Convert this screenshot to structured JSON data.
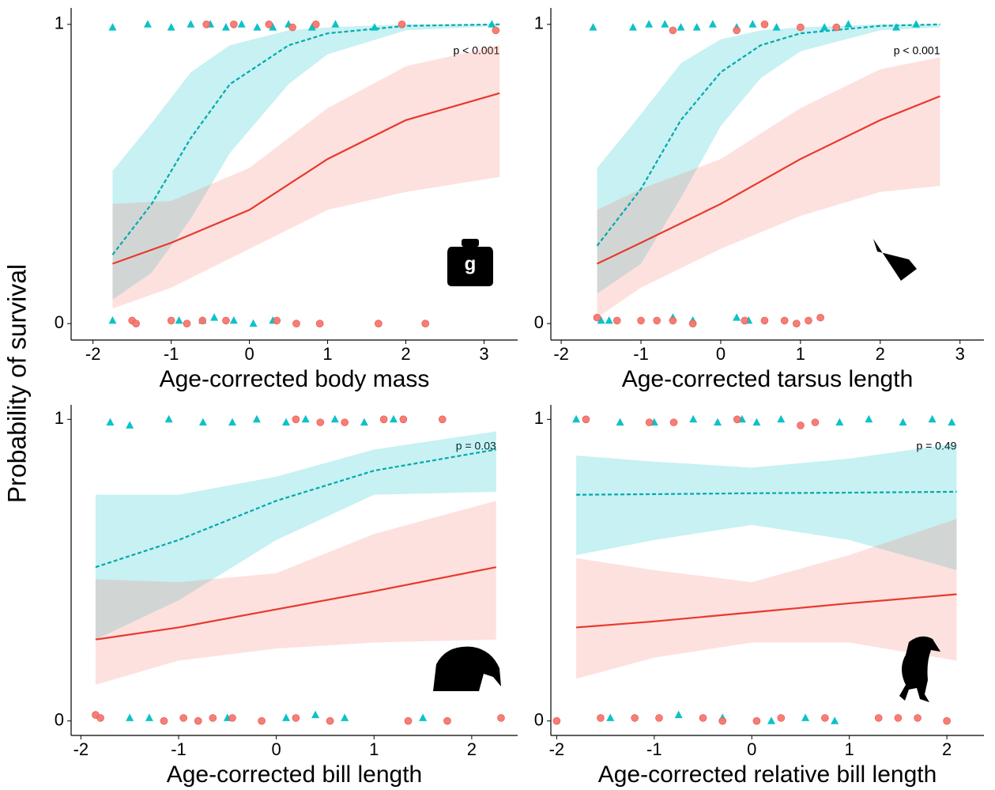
{
  "y_label": "Probability of survival",
  "chart_data": [
    {
      "type": "line",
      "x_label": "Age-corrected body mass",
      "annotation": "p < 0.001",
      "icon_text": "g",
      "xlim": [
        -2.28,
        3.43
      ],
      "xticks": [
        -2,
        -1,
        0,
        1,
        2,
        3
      ],
      "ylim": [
        -0.055,
        1.055
      ],
      "yticks": [
        0,
        1
      ],
      "series": [
        {
          "color": "#00BFC4",
          "dashed": true,
          "marker": "triangle",
          "x": [
            -1.75,
            -1.25,
            -0.75,
            -0.25,
            0.5,
            1,
            2,
            3.2
          ],
          "values": [
            0.23,
            0.4,
            0.62,
            0.8,
            0.93,
            0.97,
            0.995,
            1.0
          ],
          "lower": [
            0.08,
            0.17,
            0.35,
            0.57,
            0.8,
            0.9,
            0.98,
            0.995
          ],
          "upper": [
            0.51,
            0.67,
            0.84,
            0.93,
            0.98,
            0.99,
            1.0,
            1.0
          ],
          "points_x": [
            -1.75,
            -1.3,
            -1.0,
            -0.75,
            -0.5,
            -0.3,
            -0.1,
            0.1,
            0.3,
            0.5,
            0.8,
            1.1,
            1.6,
            3.1,
            -1.75,
            -0.9,
            -0.6,
            -0.45,
            -0.2,
            0.05,
            0.3
          ],
          "points_y": [
            0.99,
            1.0,
            0.99,
            1.0,
            1.0,
            0.99,
            1.0,
            0.99,
            0.99,
            1.0,
            0.99,
            1.0,
            0.99,
            1.0,
            0.01,
            0.01,
            0.01,
            0.02,
            0.01,
            0.0,
            0.01
          ]
        },
        {
          "color": "#F8766D",
          "dashed": false,
          "marker": "circle",
          "x": [
            -1.75,
            -1,
            0,
            1,
            2,
            3.2
          ],
          "values": [
            0.2,
            0.27,
            0.38,
            0.55,
            0.68,
            0.77
          ],
          "lower": [
            0.05,
            0.12,
            0.25,
            0.38,
            0.44,
            0.49
          ],
          "upper": [
            0.4,
            0.41,
            0.52,
            0.72,
            0.86,
            0.93
          ],
          "points_x": [
            -0.55,
            -0.2,
            0.25,
            0.55,
            0.85,
            1.95,
            3.15,
            -1.5,
            -1.45,
            -1.0,
            -0.8,
            -0.6,
            -0.3,
            0.35,
            0.6,
            0.9,
            1.65,
            2.25
          ],
          "points_y": [
            1.0,
            1.0,
            1.0,
            0.99,
            1.0,
            1.0,
            0.98,
            0.01,
            0.0,
            0.01,
            0.0,
            0.01,
            0.01,
            0.01,
            0.0,
            0.0,
            0.0,
            0.0
          ]
        }
      ]
    },
    {
      "type": "line",
      "x_label": "Age-corrected tarsus length",
      "annotation": "p < 0.001",
      "xlim": [
        -2.13,
        3.3
      ],
      "xticks": [
        -2,
        -1,
        0,
        1,
        2,
        3
      ],
      "ylim": [
        -0.055,
        1.055
      ],
      "yticks": [
        0,
        1
      ],
      "series": [
        {
          "color": "#00BFC4",
          "dashed": true,
          "marker": "triangle",
          "x": [
            -1.55,
            -1,
            -0.5,
            0,
            0.5,
            1,
            2,
            2.75
          ],
          "values": [
            0.26,
            0.45,
            0.68,
            0.84,
            0.93,
            0.97,
            0.995,
            1.0
          ],
          "lower": [
            0.1,
            0.2,
            0.42,
            0.66,
            0.82,
            0.91,
            0.98,
            0.99
          ],
          "upper": [
            0.52,
            0.7,
            0.87,
            0.95,
            0.98,
            0.99,
            1.0,
            1.0
          ],
          "points_x": [
            -1.6,
            -1.1,
            -0.9,
            -0.7,
            -0.5,
            -0.3,
            -0.1,
            0.2,
            0.4,
            0.7,
            1.3,
            1.6,
            2.2,
            2.45,
            -1.5,
            -1.4,
            -0.6,
            -0.35,
            0.2,
            0.35
          ],
          "points_y": [
            0.99,
            0.99,
            1.0,
            1.0,
            0.99,
            0.99,
            1.0,
            0.99,
            1.0,
            0.99,
            0.99,
            1.0,
            0.99,
            1.0,
            0.01,
            0.01,
            0.02,
            0.01,
            0.02,
            0.01
          ]
        },
        {
          "color": "#F8766D",
          "dashed": false,
          "marker": "circle",
          "x": [
            -1.55,
            -1,
            0,
            1,
            2,
            2.75
          ],
          "values": [
            0.2,
            0.27,
            0.4,
            0.55,
            0.68,
            0.76
          ],
          "lower": [
            0.02,
            0.12,
            0.25,
            0.36,
            0.44,
            0.46
          ],
          "upper": [
            0.38,
            0.45,
            0.55,
            0.72,
            0.85,
            0.89
          ],
          "points_x": [
            -0.6,
            0.2,
            0.55,
            1.0,
            1.45,
            -1.55,
            -1.3,
            -1.0,
            -0.8,
            -0.6,
            -0.35,
            0.3,
            0.55,
            0.8,
            0.95,
            1.1,
            1.25
          ],
          "points_y": [
            0.98,
            0.98,
            1.0,
            0.99,
            0.99,
            0.02,
            0.01,
            0.01,
            0.01,
            0.01,
            0.0,
            0.01,
            0.01,
            0.01,
            0.0,
            0.01,
            0.02
          ]
        }
      ]
    },
    {
      "type": "line",
      "x_label": "Age-corrected bill length",
      "annotation": "p = 0.03",
      "xlim": [
        -2.1,
        2.47
      ],
      "xticks": [
        -2,
        -1,
        0,
        1,
        2
      ],
      "ylim": [
        -0.048,
        1.048
      ],
      "yticks": [
        0,
        1
      ],
      "series": [
        {
          "color": "#00BFC4",
          "dashed": true,
          "marker": "triangle",
          "x": [
            -1.85,
            -1,
            0,
            1,
            2.25
          ],
          "values": [
            0.51,
            0.6,
            0.73,
            0.83,
            0.9
          ],
          "lower": [
            0.27,
            0.4,
            0.6,
            0.75,
            0.76
          ],
          "upper": [
            0.75,
            0.75,
            0.81,
            0.9,
            0.96
          ],
          "points_x": [
            -1.7,
            -1.5,
            -1.1,
            -0.75,
            -0.45,
            -0.2,
            0.1,
            0.3,
            0.6,
            0.9,
            1.2,
            -1.5,
            -1.3,
            -0.5,
            0.1,
            0.4,
            0.7,
            1.5
          ],
          "points_y": [
            0.99,
            0.98,
            1.0,
            0.99,
            0.99,
            1.0,
            0.99,
            1.0,
            1.0,
            0.99,
            1.0,
            0.01,
            0.01,
            0.01,
            0.01,
            0.02,
            0.01,
            0.01
          ]
        },
        {
          "color": "#F8766D",
          "dashed": false,
          "marker": "circle",
          "x": [
            -1.85,
            -1,
            0,
            1,
            2.25
          ],
          "values": [
            0.27,
            0.31,
            0.37,
            0.43,
            0.51
          ],
          "lower": [
            0.12,
            0.2,
            0.24,
            0.26,
            0.27
          ],
          "upper": [
            0.47,
            0.46,
            0.49,
            0.62,
            0.73
          ],
          "points_x": [
            0.2,
            0.45,
            0.7,
            1.1,
            1.3,
            1.7,
            -1.85,
            -1.8,
            -1.15,
            -0.95,
            -0.8,
            -0.65,
            -0.45,
            -0.15,
            0.2,
            0.55,
            1.35,
            1.75,
            2.3
          ],
          "points_y": [
            1.0,
            0.99,
            0.99,
            1.0,
            1.0,
            1.0,
            0.02,
            0.01,
            0.0,
            0.01,
            0.0,
            0.01,
            0.01,
            0.0,
            0.01,
            0.0,
            0.0,
            0.0,
            0.01
          ]
        }
      ]
    },
    {
      "type": "line",
      "x_label": "Age-corrected relative bill length",
      "annotation": "p = 0.49",
      "xlim": [
        -2.06,
        2.38
      ],
      "xticks": [
        -2,
        -1,
        0,
        1,
        2
      ],
      "ylim": [
        -0.048,
        1.048
      ],
      "yticks": [
        0,
        1
      ],
      "series": [
        {
          "color": "#00BFC4",
          "dashed": true,
          "marker": "triangle",
          "x": [
            -1.8,
            -1,
            0,
            1,
            2.1
          ],
          "values": [
            0.75,
            0.752,
            0.755,
            0.757,
            0.76
          ],
          "lower": [
            0.55,
            0.6,
            0.65,
            0.6,
            0.5
          ],
          "upper": [
            0.88,
            0.86,
            0.84,
            0.87,
            0.92
          ],
          "points_x": [
            -1.8,
            -1.35,
            -1.0,
            -0.6,
            -0.35,
            -0.1,
            0.05,
            0.3,
            0.9,
            1.2,
            1.55,
            1.85,
            2.05,
            -1.45,
            -0.75,
            -0.3,
            0.2,
            0.55,
            0.85
          ],
          "points_y": [
            1.0,
            0.99,
            0.99,
            1.0,
            0.99,
            1.0,
            0.99,
            1.0,
            0.99,
            1.0,
            0.99,
            1.0,
            0.99,
            0.01,
            0.02,
            0.01,
            0.0,
            0.01,
            0.0
          ]
        },
        {
          "color": "#F8766D",
          "dashed": false,
          "marker": "circle",
          "x": [
            -1.8,
            -1,
            0,
            1,
            2.1
          ],
          "values": [
            0.31,
            0.33,
            0.36,
            0.39,
            0.42
          ],
          "lower": [
            0.14,
            0.21,
            0.26,
            0.26,
            0.2
          ],
          "upper": [
            0.54,
            0.5,
            0.46,
            0.55,
            0.67
          ],
          "points_x": [
            -1.7,
            -1.05,
            -0.8,
            -0.15,
            0.5,
            0.65,
            -2.0,
            -1.55,
            -1.2,
            -0.95,
            -0.5,
            -0.3,
            0.05,
            0.3,
            0.75,
            1.3,
            1.5,
            1.7,
            2.0
          ],
          "points_y": [
            1.0,
            0.99,
            0.99,
            1.0,
            0.98,
            0.99,
            0.0,
            0.01,
            0.01,
            0.01,
            0.01,
            0.0,
            0.0,
            0.01,
            0.01,
            0.01,
            0.01,
            0.01,
            0.0
          ]
        }
      ]
    }
  ]
}
